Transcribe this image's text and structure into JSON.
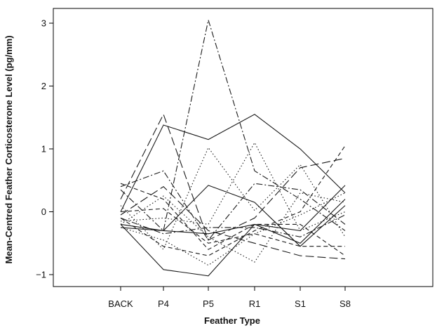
{
  "chart_data": {
    "type": "line",
    "title": "",
    "xlabel": "Feather Type",
    "ylabel": "Mean-Centred Feather Corticosterone Level (pg/mm)",
    "categories": [
      "BACK",
      "P4",
      "P5",
      "R1",
      "S1",
      "S8"
    ],
    "yticks": [
      -1,
      0,
      1,
      2,
      3
    ],
    "ylim": [
      -1.2,
      3.2
    ],
    "grid": false,
    "legend": "none",
    "colors": {
      "line": "#1a1a1a",
      "axis": "#000000"
    },
    "series": [
      {
        "values": [
          0.0,
          1.38,
          1.15,
          1.55,
          1.0,
          0.3
        ],
        "dash": "solid"
      },
      {
        "values": [
          -0.2,
          -0.92,
          -1.02,
          -0.2,
          -0.3,
          0.42
        ],
        "dash": "solid"
      },
      {
        "values": [
          -0.25,
          -0.3,
          0.42,
          0.15,
          -0.55,
          0.1
        ],
        "dash": "solid"
      },
      {
        "values": [
          -0.2,
          -0.3,
          -0.35,
          -0.2,
          -0.5,
          0.2
        ],
        "dash": "solid"
      },
      {
        "values": [
          0.35,
          -0.3,
          3.05,
          0.65,
          0.2,
          -0.3
        ],
        "dash": "dashdot"
      },
      {
        "values": [
          0.4,
          0.65,
          -0.45,
          0.45,
          0.35,
          -0.2
        ],
        "dash": "dashdot"
      },
      {
        "values": [
          0.2,
          1.55,
          -0.45,
          -0.1,
          0.7,
          0.85
        ],
        "dash": "longdash"
      },
      {
        "values": [
          -0.05,
          0.4,
          -0.3,
          -0.5,
          -0.7,
          -0.75
        ],
        "dash": "longdash"
      },
      {
        "values": [
          0.0,
          0.05,
          -0.5,
          -0.35,
          -0.55,
          -0.55
        ],
        "dash": "dashed"
      },
      {
        "values": [
          0.45,
          0.2,
          -0.6,
          -0.2,
          -0.2,
          -0.7
        ],
        "dash": "dashed"
      },
      {
        "values": [
          -0.1,
          -0.55,
          -0.7,
          -0.3,
          0.0,
          1.05
        ],
        "dash": "dashed"
      },
      {
        "values": [
          -0.25,
          -0.45,
          -0.85,
          -0.35,
          -0.05,
          0.3
        ],
        "dash": "dotted"
      },
      {
        "values": [
          0.1,
          -0.6,
          1.02,
          0.02,
          0.75,
          -0.4
        ],
        "dash": "dotted"
      },
      {
        "values": [
          -0.15,
          -0.1,
          -0.2,
          1.1,
          -0.3,
          0.0
        ],
        "dash": "dotted"
      },
      {
        "values": [
          -0.2,
          0.25,
          -0.4,
          -0.8,
          0.3,
          0.15
        ],
        "dash": "dotted"
      },
      {
        "values": [
          -0.1,
          -0.35,
          -0.25,
          -0.25,
          -0.4,
          -0.05
        ],
        "dash": "dashdot"
      }
    ]
  }
}
